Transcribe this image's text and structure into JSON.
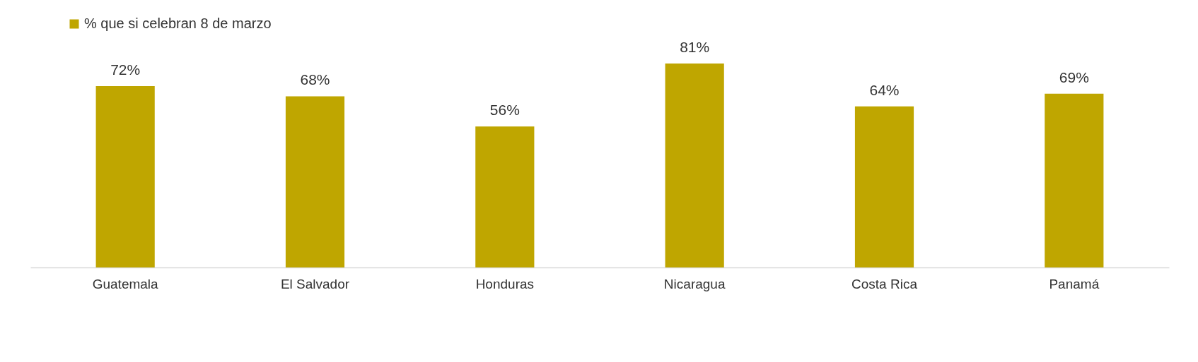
{
  "chart_data": {
    "type": "bar",
    "categories": [
      "Guatemala",
      "El Salvador",
      "Honduras",
      "Nicaragua",
      "Costa Rica",
      "Panamá"
    ],
    "series": [
      {
        "name": "% que si celebran 8 de marzo",
        "color": "#bfa600",
        "values": [
          72,
          68,
          56,
          81,
          64,
          69
        ],
        "value_labels": [
          "72%",
          "68%",
          "56%",
          "81%",
          "64%",
          "69%"
        ]
      }
    ],
    "legend": "top left"
  }
}
